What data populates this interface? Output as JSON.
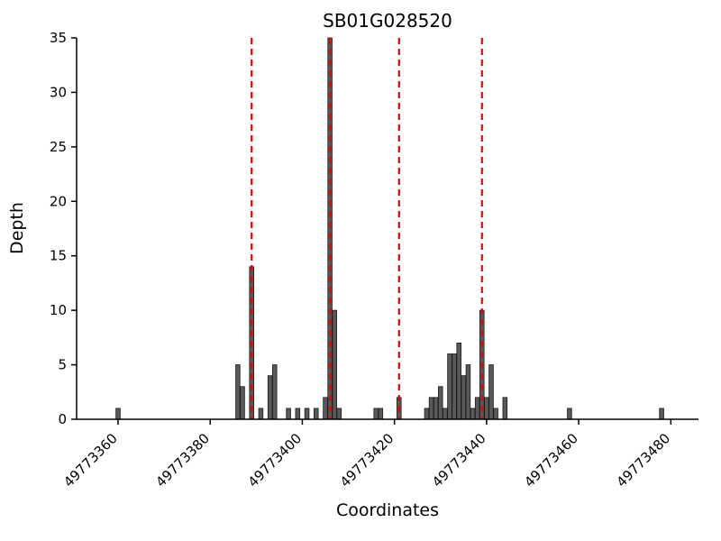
{
  "chart_data": {
    "type": "bar",
    "title": "SB01G028520",
    "xlabel": "Coordinates",
    "ylabel": "Depth",
    "xlim": [
      49773351,
      49773486
    ],
    "ylim": [
      0,
      35
    ],
    "x_ticks": [
      49773360,
      49773380,
      49773400,
      49773420,
      49773440,
      49773460,
      49773480
    ],
    "x_tick_labels": [
      "49773360",
      "49773380",
      "49773400",
      "49773420",
      "49773440",
      "49773460",
      "49773480"
    ],
    "y_ticks": [
      0,
      5,
      10,
      15,
      20,
      25,
      30,
      35
    ],
    "y_tick_labels": [
      "0",
      "5",
      "10",
      "15",
      "20",
      "25",
      "30",
      "35"
    ],
    "grid": false,
    "legend": "none",
    "bars": [
      {
        "x": 49773360,
        "depth": 1
      },
      {
        "x": 49773386,
        "depth": 5
      },
      {
        "x": 49773387,
        "depth": 3
      },
      {
        "x": 49773389,
        "depth": 14
      },
      {
        "x": 49773391,
        "depth": 1
      },
      {
        "x": 49773393,
        "depth": 4
      },
      {
        "x": 49773394,
        "depth": 5
      },
      {
        "x": 49773397,
        "depth": 1
      },
      {
        "x": 49773399,
        "depth": 1
      },
      {
        "x": 49773401,
        "depth": 1
      },
      {
        "x": 49773403,
        "depth": 1
      },
      {
        "x": 49773405,
        "depth": 2
      },
      {
        "x": 49773406,
        "depth": 35
      },
      {
        "x": 49773407,
        "depth": 10
      },
      {
        "x": 49773408,
        "depth": 1
      },
      {
        "x": 49773416,
        "depth": 1
      },
      {
        "x": 49773417,
        "depth": 1
      },
      {
        "x": 49773421,
        "depth": 2
      },
      {
        "x": 49773427,
        "depth": 1
      },
      {
        "x": 49773428,
        "depth": 2
      },
      {
        "x": 49773429,
        "depth": 2
      },
      {
        "x": 49773430,
        "depth": 3
      },
      {
        "x": 49773431,
        "depth": 1
      },
      {
        "x": 49773432,
        "depth": 6
      },
      {
        "x": 49773433,
        "depth": 6
      },
      {
        "x": 49773434,
        "depth": 7
      },
      {
        "x": 49773435,
        "depth": 4
      },
      {
        "x": 49773436,
        "depth": 5
      },
      {
        "x": 49773437,
        "depth": 1
      },
      {
        "x": 49773438,
        "depth": 2
      },
      {
        "x": 49773439,
        "depth": 10
      },
      {
        "x": 49773440,
        "depth": 2
      },
      {
        "x": 49773441,
        "depth": 5
      },
      {
        "x": 49773442,
        "depth": 1
      },
      {
        "x": 49773444,
        "depth": 2
      },
      {
        "x": 49773458,
        "depth": 1
      },
      {
        "x": 49773478,
        "depth": 1
      }
    ],
    "marker_lines": [
      49773389,
      49773406,
      49773421,
      49773439
    ],
    "colors": {
      "bar_fill": "#595959",
      "bar_stroke": "#1a1a1a",
      "marker_line": "#ee0000",
      "axis": "#000000",
      "background": "#ffffff"
    }
  }
}
